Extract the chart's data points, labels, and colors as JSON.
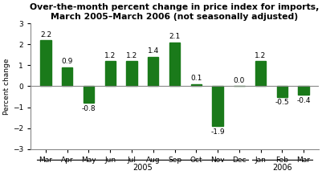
{
  "categories": [
    "Mar",
    "Apr",
    "May",
    "Jun",
    "Jul",
    "Aug",
    "Sep",
    "Oct",
    "Nov",
    "Dec",
    "Jan",
    "Feb",
    "Mar"
  ],
  "values": [
    2.2,
    0.9,
    -0.8,
    1.2,
    1.2,
    1.4,
    2.1,
    0.1,
    -1.9,
    0.0,
    1.2,
    -0.5,
    -0.4
  ],
  "bar_color": "#1a7a1a",
  "title_line1": "Over-the-month percent change in price index for imports,",
  "title_line2": "March 2005–March 2006 (not seasonally adjusted)",
  "ylabel": "Percent change",
  "ylim": [
    -3,
    3
  ],
  "yticks": [
    -3,
    -2,
    -1,
    0,
    1,
    2,
    3
  ],
  "title_fontsize": 7.8,
  "label_fontsize": 6.5,
  "tick_fontsize": 6.5,
  "year_fontsize": 7.0,
  "background_color": "#ffffff"
}
